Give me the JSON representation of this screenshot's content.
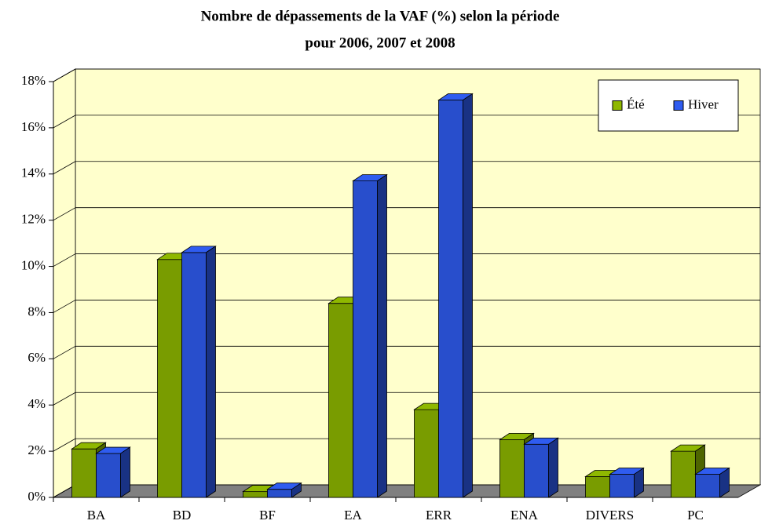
{
  "chart_data": {
    "type": "bar3d",
    "title": [
      "Nombre de dépassements de la VAF (%) selon la période",
      "pour 2006, 2007 et 2008"
    ],
    "categories": [
      "BA",
      "BD",
      "BF",
      "EA",
      "ERR",
      "ENA",
      "DIVERS",
      "PC"
    ],
    "series": [
      {
        "name": "Été",
        "color": "#8fb800",
        "values": [
          2.1,
          10.3,
          0.25,
          8.4,
          3.8,
          2.5,
          0.9,
          2.0
        ]
      },
      {
        "name": "Hiver",
        "color": "#2f5cf0",
        "values": [
          1.9,
          10.6,
          0.35,
          13.7,
          17.2,
          2.3,
          1.0,
          1.0
        ]
      }
    ],
    "ylim": [
      0,
      18
    ],
    "yticks": [
      {
        "value": 0,
        "label": "0%"
      },
      {
        "value": 2,
        "label": "2%"
      },
      {
        "value": 4,
        "label": "4%"
      },
      {
        "value": 6,
        "label": "6%"
      },
      {
        "value": 8,
        "label": "8%"
      },
      {
        "value": 10,
        "label": "10%"
      },
      {
        "value": 12,
        "label": "12%"
      },
      {
        "value": 14,
        "label": "14%"
      },
      {
        "value": 16,
        "label": "16%"
      },
      {
        "value": 18,
        "label": "18%"
      }
    ],
    "grid": true,
    "legend": "top-right",
    "wall_color": "#ffffcc",
    "floor_color": "#808080"
  }
}
